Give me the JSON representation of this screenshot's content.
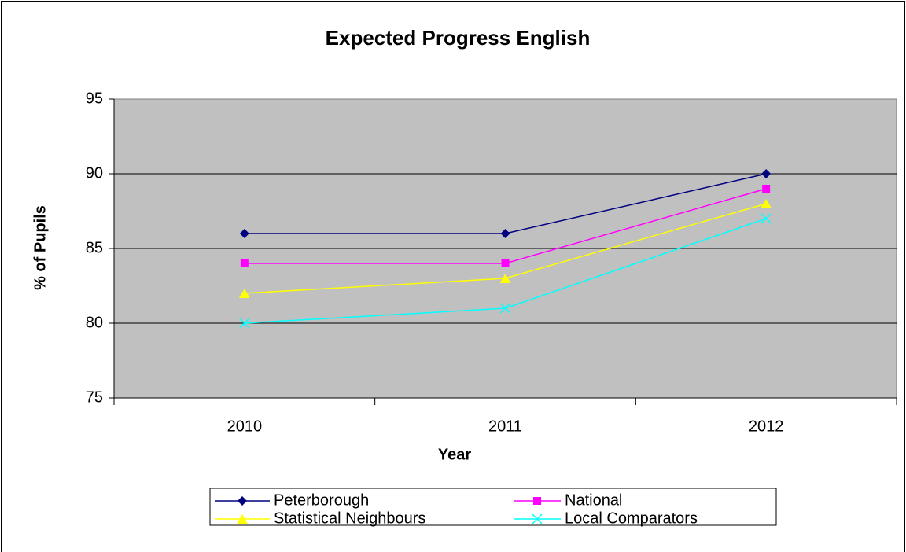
{
  "chart_data": {
    "type": "line",
    "title": "Expected Progress English",
    "x_label": "Year",
    "y_label": "% of Pupils",
    "categories": [
      "2010",
      "2011",
      "2012"
    ],
    "series": [
      {
        "name": "Peterborough",
        "color": "#000080",
        "marker": "diamond",
        "values": [
          86,
          86,
          90
        ]
      },
      {
        "name": "National",
        "color": "#ff00ff",
        "marker": "square",
        "values": [
          84,
          84,
          89
        ]
      },
      {
        "name": "Statistical Neighbours",
        "color": "#ffff00",
        "marker": "triangle",
        "values": [
          82,
          83,
          88
        ]
      },
      {
        "name": "Local Comparators",
        "color": "#00ffff",
        "marker": "x",
        "values": [
          80,
          81,
          87
        ]
      }
    ],
    "ylim": [
      75,
      95
    ],
    "yticks": [
      75,
      80,
      85,
      90,
      95
    ],
    "grid": true,
    "legend": "bottom",
    "plot_background": "#c0c0c0"
  }
}
